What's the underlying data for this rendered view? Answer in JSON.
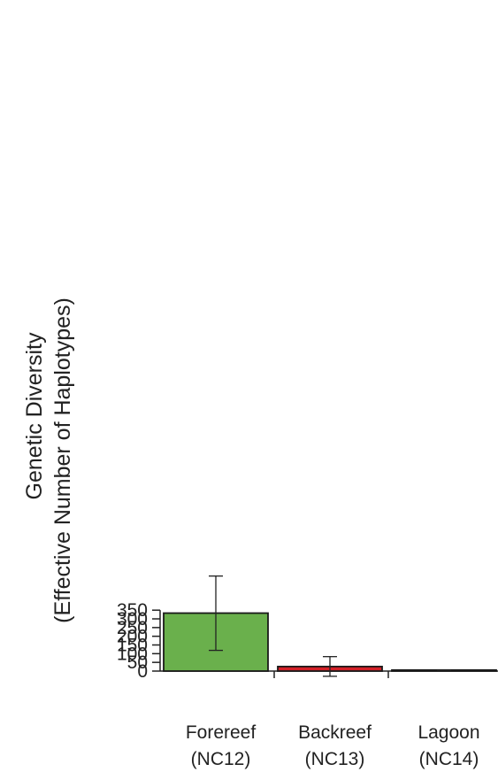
{
  "chart_data": {
    "type": "bar",
    "categories": [
      {
        "name": "Forereef",
        "sub": "(NC12)"
      },
      {
        "name": "Backreef",
        "sub": "(NC13)"
      },
      {
        "name": "Lagoon",
        "sub": "(NC14)"
      }
    ],
    "values": [
      333,
      26,
      6
    ],
    "error_bars": [
      {
        "low": 119,
        "high": 546
      },
      {
        "low": -30,
        "high": 83
      },
      {
        "low": 5,
        "high": 7
      }
    ],
    "colors": [
      "#6ab04c",
      "#d42027",
      "#f7ee2d"
    ],
    "ylabel_line1": "Genetic Diversity",
    "ylabel_line2": "(Effective Number of Haplotypes)",
    "yticks": [
      0,
      50,
      100,
      150,
      200,
      250,
      300,
      350
    ],
    "ylim": [
      0,
      350
    ],
    "grid": false
  }
}
